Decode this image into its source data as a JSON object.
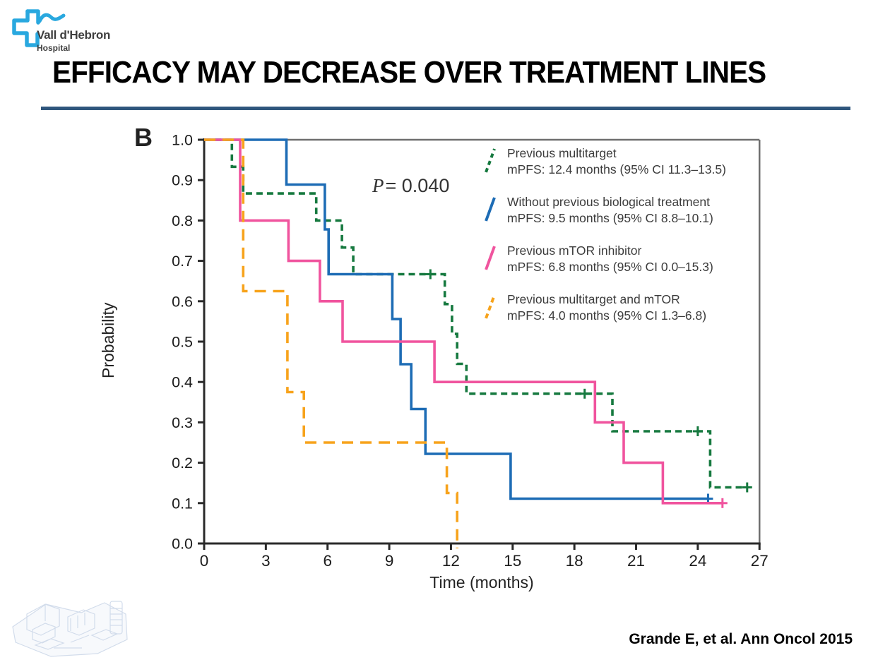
{
  "logo": {
    "line1": "Vall d'Hebron",
    "line2": "Hospital",
    "brand_color": "#29a8df"
  },
  "header": {
    "title": "EFFICACY MAY DECREASE OVER TREATMENT LINES",
    "rule_color": "#2f567d"
  },
  "footer": {
    "citation": "Grande E, et al. Ann Oncol 2015"
  },
  "chart_data": {
    "type": "line",
    "subtype": "kaplan-meier-step",
    "panel_label": "B",
    "p_symbol": "P",
    "p_rest": "= 0.040",
    "xlabel": "Time (months)",
    "ylabel": "Probability",
    "xlim": [
      0,
      27
    ],
    "ylim": [
      0.0,
      1.0
    ],
    "x_ticks": [
      0,
      3,
      6,
      9,
      12,
      15,
      18,
      21,
      24,
      27
    ],
    "y_tick_labels": [
      "0.0",
      "0.1",
      "0.2",
      "0.3",
      "0.4",
      "0.5",
      "0.6",
      "0.7",
      "0.8",
      "0.9",
      "1.0"
    ],
    "grid": false,
    "frame": {
      "top": true,
      "right": true,
      "frame_color": "#6f6f6f",
      "axis_color": "#2a2a2a"
    },
    "legend_position": "top-right-inside",
    "series": [
      {
        "name": "Previous multitarget",
        "mpfs": "mPFS: 12.4 months (95% CI 11.3–13.5)",
        "color": "#16793f",
        "dash": "9 6",
        "legend_dash": "6 5",
        "points": [
          [
            0,
            1.0
          ],
          [
            1.35,
            1.0
          ],
          [
            1.35,
            0.933
          ],
          [
            1.9,
            0.933
          ],
          [
            1.9,
            0.867
          ],
          [
            5.45,
            0.867
          ],
          [
            5.45,
            0.8
          ],
          [
            6.7,
            0.8
          ],
          [
            6.7,
            0.733
          ],
          [
            7.25,
            0.733
          ],
          [
            7.25,
            0.667
          ],
          [
            11.7,
            0.667
          ],
          [
            11.7,
            0.593
          ],
          [
            12.05,
            0.593
          ],
          [
            12.05,
            0.519
          ],
          [
            12.3,
            0.519
          ],
          [
            12.3,
            0.445
          ],
          [
            12.75,
            0.445
          ],
          [
            12.75,
            0.371
          ],
          [
            19.85,
            0.371
          ],
          [
            19.85,
            0.278
          ],
          [
            24.6,
            0.278
          ],
          [
            24.6,
            0.139
          ],
          [
            26.4,
            0.139
          ]
        ],
        "censors": [
          [
            11.0,
            0.667
          ],
          [
            18.5,
            0.371
          ],
          [
            24.0,
            0.278
          ],
          [
            26.4,
            0.139
          ]
        ]
      },
      {
        "name": "Without previous biological treatment",
        "mpfs": "mPFS: 9.5 months (95% CI 8.8–10.1)",
        "color": "#1d6cb5",
        "dash": "",
        "legend_dash": "",
        "points": [
          [
            0,
            1.0
          ],
          [
            4.0,
            1.0
          ],
          [
            4.0,
            0.889
          ],
          [
            5.87,
            0.889
          ],
          [
            5.87,
            0.778
          ],
          [
            6.05,
            0.778
          ],
          [
            6.05,
            0.667
          ],
          [
            9.15,
            0.667
          ],
          [
            9.15,
            0.556
          ],
          [
            9.55,
            0.556
          ],
          [
            9.55,
            0.444
          ],
          [
            10.07,
            0.444
          ],
          [
            10.07,
            0.333
          ],
          [
            10.76,
            0.333
          ],
          [
            10.76,
            0.222
          ],
          [
            14.9,
            0.222
          ],
          [
            14.9,
            0.111
          ],
          [
            24.5,
            0.111
          ]
        ],
        "censors": [
          [
            24.5,
            0.111
          ]
        ]
      },
      {
        "name": "Previous mTOR inhibitor",
        "mpfs": "mPFS: 6.8 months (95% CI 0.0–15.3)",
        "color": "#f0549e",
        "dash": "",
        "legend_dash": "",
        "points": [
          [
            0,
            1.0
          ],
          [
            1.75,
            1.0
          ],
          [
            1.75,
            0.8
          ],
          [
            4.1,
            0.8
          ],
          [
            4.1,
            0.7
          ],
          [
            5.63,
            0.7
          ],
          [
            5.63,
            0.6
          ],
          [
            6.73,
            0.6
          ],
          [
            6.73,
            0.5
          ],
          [
            11.2,
            0.5
          ],
          [
            11.2,
            0.4
          ],
          [
            19.0,
            0.4
          ],
          [
            19.0,
            0.3
          ],
          [
            20.4,
            0.3
          ],
          [
            20.4,
            0.2
          ],
          [
            22.3,
            0.2
          ],
          [
            22.3,
            0.1
          ],
          [
            25.2,
            0.1
          ]
        ],
        "censors": [
          [
            25.2,
            0.1
          ]
        ]
      },
      {
        "name": "Previous multitarget and mTOR",
        "mpfs": "mPFS: 4.0 months (95% CI 1.3–6.8)",
        "color": "#f7a31c",
        "dash": "16 10",
        "legend_dash": "7 5",
        "points": [
          [
            0,
            1.0
          ],
          [
            1.9,
            1.0
          ],
          [
            1.9,
            0.625
          ],
          [
            4.05,
            0.625
          ],
          [
            4.05,
            0.375
          ],
          [
            4.85,
            0.375
          ],
          [
            4.85,
            0.25
          ],
          [
            11.8,
            0.25
          ],
          [
            11.8,
            0.125
          ],
          [
            12.3,
            0.125
          ],
          [
            12.3,
            -0.012
          ]
        ],
        "censors": []
      }
    ]
  }
}
